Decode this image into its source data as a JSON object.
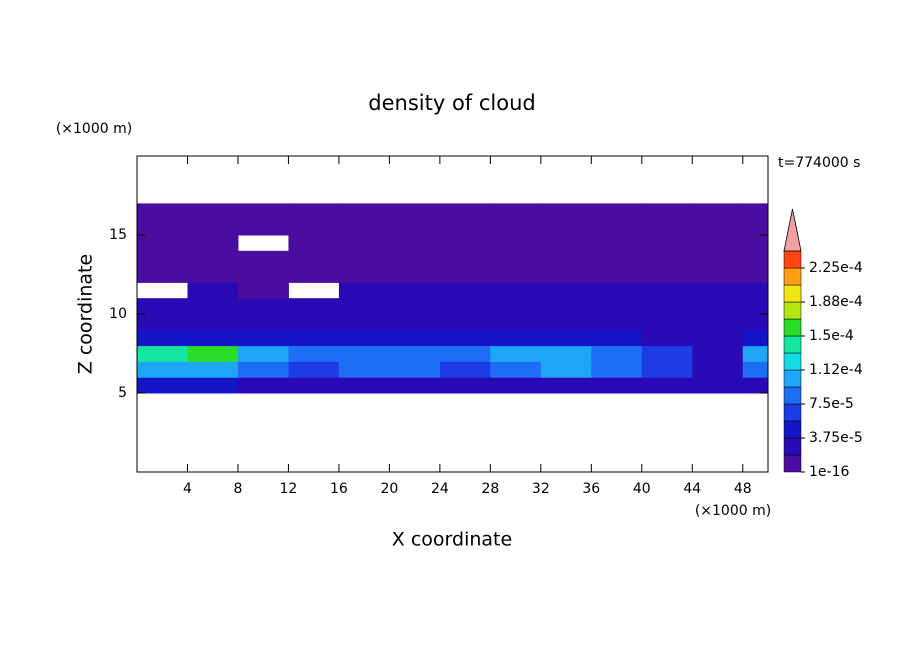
{
  "chart_data": {
    "type": "contour",
    "title": "density of cloud",
    "x_unit": "(×1000 m)",
    "y_unit": "(×1000 m)",
    "time_label": "t=774000 s",
    "x_label": "X coordinate",
    "y_label": "Z coordinate",
    "xlim": [
      0,
      50
    ],
    "ylim": [
      0,
      20
    ],
    "xticks": [
      4,
      8,
      12,
      16,
      20,
      24,
      28,
      32,
      36,
      40,
      44,
      48
    ],
    "yticks": [
      5,
      10,
      15
    ],
    "x": [
      2,
      6,
      10,
      14,
      18,
      22,
      26,
      30,
      34,
      38,
      42,
      46,
      50
    ],
    "y": [
      5.5,
      6.5,
      7.5,
      8.5,
      9.5,
      10.5,
      11.5,
      12.5,
      13.5,
      14.5,
      15.5,
      16.5
    ],
    "z": [
      [
        4e-05,
        4e-05,
        3e-05,
        2.5e-05,
        3e-05,
        3e-05,
        3e-05,
        3e-05,
        3.5e-05,
        3e-05,
        2.5e-05,
        2e-05,
        3e-05
      ],
      [
        0.0001,
        0.00011,
        8e-05,
        6e-05,
        9e-05,
        8e-05,
        7e-05,
        9e-05,
        0.0001,
        9e-05,
        7e-05,
        3e-05,
        8e-05
      ],
      [
        0.00014,
        0.00015,
        0.00011,
        8e-05,
        9e-05,
        9e-05,
        9e-05,
        0.000105,
        0.0001,
        9e-05,
        6e-05,
        3e-05,
        0.00011
      ],
      [
        5e-05,
        5e-05,
        4e-05,
        4e-05,
        4e-05,
        4e-05,
        4e-05,
        4.5e-05,
        4.5e-05,
        4e-05,
        3.5e-05,
        3e-05,
        4e-05
      ],
      [
        3e-05,
        3e-05,
        3e-05,
        2.5e-05,
        3e-05,
        3e-05,
        3e-05,
        3e-05,
        3e-05,
        3.5e-05,
        3.5e-05,
        3e-05,
        3e-05
      ],
      [
        2e-05,
        2e-05,
        2e-05,
        2e-05,
        2e-05,
        2e-05,
        2e-05,
        2e-05,
        2e-05,
        3.5e-05,
        3.5e-05,
        3e-05,
        2e-05
      ],
      [
        null,
        2e-05,
        1.5e-05,
        null,
        2e-05,
        2e-05,
        2e-05,
        2e-05,
        2e-05,
        3e-05,
        3e-05,
        3e-05,
        2e-05
      ],
      [
        1.5e-05,
        1.5e-05,
        1.5e-05,
        1.5e-05,
        1.5e-05,
        1.5e-05,
        1.5e-05,
        1.5e-05,
        1.5e-05,
        1.5e-05,
        1.5e-05,
        1.5e-05,
        1.5e-05
      ],
      [
        8e-06,
        8e-06,
        8e-06,
        8e-06,
        8e-06,
        8e-06,
        8e-06,
        8e-06,
        8e-06,
        8e-06,
        5e-06,
        8e-06,
        8e-06
      ],
      [
        5e-06,
        5e-06,
        null,
        5e-06,
        5e-06,
        5e-06,
        5e-06,
        5e-06,
        5e-06,
        5e-06,
        5e-06,
        5e-06,
        5e-06
      ],
      [
        5e-06,
        5e-06,
        5e-06,
        5e-06,
        5e-06,
        5e-06,
        5e-06,
        5e-06,
        5e-06,
        5e-06,
        5e-06,
        5e-06,
        5e-06
      ],
      [
        5e-06,
        5e-06,
        5e-06,
        5e-06,
        5e-06,
        5e-06,
        5e-06,
        5e-06,
        5e-06,
        5e-06,
        5e-06,
        5e-06,
        5e-06
      ]
    ],
    "levels": [
      1e-16,
      1.875e-05,
      3.75e-05,
      5.625e-05,
      7.5e-05,
      9.375e-05,
      0.0001125,
      0.00013125,
      0.00015,
      0.00016875,
      0.0001875,
      0.00020625,
      0.000225,
      0.00024375
    ],
    "colors": [
      "#4b0ca0",
      "#2a0ab4",
      "#1414c8",
      "#1e3ce6",
      "#1e6ef5",
      "#1ea5f5",
      "#14dce6",
      "#14e6a0",
      "#28dc28",
      "#b4e614",
      "#f0e614",
      "#ffa014",
      "#ff4614"
    ],
    "extend_color": "#f5a0a0",
    "colorbar_ticks": [
      1e-16,
      {
        "value": 3.75e-05,
        "label": "3.75e-5"
      },
      {
        "value": 7.5e-05,
        "label": "7.5e-5"
      },
      {
        "value": 0.0001125,
        "label": "1.12e-4"
      },
      {
        "value": 0.00015,
        "label": "1.5e-4"
      },
      {
        "value": 0.0001875,
        "label": "1.88e-4"
      },
      {
        "value": 0.000225,
        "label": "2.25e-4"
      }
    ]
  }
}
